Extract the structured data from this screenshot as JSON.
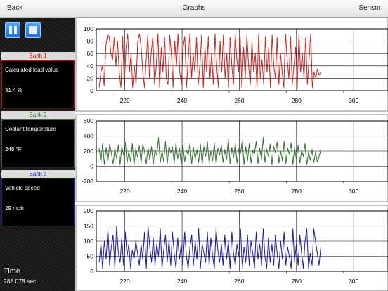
{
  "nav": {
    "back_label": "Back",
    "title": "Graphs",
    "sensor_label": "Sensor"
  },
  "controls": {
    "pause_icon": "pause-icon",
    "stop_icon": "stop-icon",
    "accent": "#2a86f6"
  },
  "banks": [
    {
      "header": "Bank 1",
      "sensor": "Calculated load value",
      "value": "31.4 %",
      "color": "#cc0000"
    },
    {
      "header": "Bank 2",
      "sensor": "Coolant temperature",
      "value": "248 °F",
      "color": "#3a6e3a"
    },
    {
      "header": "Bank 3",
      "sensor": "Vehicle speed",
      "value": "29 mph",
      "color": "#1a1aaa"
    }
  ],
  "time": {
    "label": "Time",
    "value": "288.078 sec"
  },
  "chart_data": [
    {
      "type": "line",
      "xlim": [
        210,
        312
      ],
      "ylim": [
        0,
        100
      ],
      "x_ticks": [
        220,
        240,
        260,
        280,
        300
      ],
      "y_ticks": [
        0,
        20,
        40,
        60,
        80,
        100
      ],
      "grid": true,
      "color": "#cc2222",
      "series": [
        {
          "values": [
            5,
            30,
            40,
            8,
            72,
            90,
            88,
            60,
            50,
            86,
            40,
            80,
            30,
            5,
            88,
            10,
            70,
            92,
            30,
            60,
            5,
            40,
            10,
            80,
            92,
            70,
            30,
            5,
            50,
            90,
            20,
            60,
            88,
            10,
            40,
            92,
            5,
            70,
            30,
            86,
            20,
            10,
            90,
            60,
            5,
            80,
            40,
            92,
            30,
            10,
            70,
            88,
            5,
            50,
            92,
            20,
            60,
            30,
            86,
            10,
            40,
            90,
            5,
            70,
            30,
            88,
            20,
            60,
            10,
            92,
            40,
            5,
            80,
            30,
            90,
            20,
            60,
            5,
            86,
            40,
            10,
            92,
            50,
            30,
            88,
            5,
            70,
            20,
            90,
            40,
            10,
            80,
            30,
            60,
            5,
            92,
            20,
            50,
            10,
            88,
            30,
            70,
            5,
            90,
            40,
            20,
            86,
            10,
            60,
            30,
            5,
            92,
            50,
            20,
            88,
            10,
            40,
            70,
            5,
            90,
            30,
            60,
            20,
            86,
            10,
            50,
            92,
            5,
            30,
            20,
            35,
            25,
            30
          ]
        }
      ]
    },
    {
      "type": "line",
      "xlim": [
        210,
        312
      ],
      "ylim": [
        -200,
        600
      ],
      "x_ticks": [
        220,
        240,
        260,
        280,
        300
      ],
      "y_ticks": [
        -200,
        0,
        200,
        400,
        600
      ],
      "grid": true,
      "color": "#3a6e3a",
      "series": [
        {
          "values": [
            240,
            50,
            300,
            20,
            250,
            60,
            290,
            180,
            30,
            230,
            100,
            280,
            20,
            260,
            150,
            320,
            40,
            200,
            60,
            300,
            10,
            240,
            120,
            270,
            40,
            290,
            200,
            30,
            250,
            80,
            260,
            20,
            230,
            140,
            380,
            50,
            200,
            60,
            330,
            30,
            270,
            180,
            260,
            40,
            300,
            100,
            240,
            20,
            280,
            60,
            210,
            150,
            300,
            30,
            250,
            90,
            220,
            50,
            290,
            20,
            260,
            130,
            330,
            40,
            200,
            70,
            310,
            30,
            240,
            150,
            280,
            50,
            220,
            90,
            360,
            30,
            250,
            110,
            300,
            40,
            230,
            170,
            350,
            20,
            260,
            70,
            300,
            40,
            210,
            160,
            330,
            30,
            240,
            90,
            380,
            50,
            220,
            130,
            290,
            20,
            260,
            180,
            320,
            40,
            200,
            70,
            330,
            30,
            240,
            160,
            310,
            20,
            250,
            90,
            280,
            40,
            210,
            130,
            300,
            20,
            190,
            80,
            220,
            50,
            190,
            60,
            120,
            220
          ]
        }
      ]
    },
    {
      "type": "line",
      "xlim": [
        210,
        312
      ],
      "ylim": [
        0,
        200
      ],
      "x_ticks": [
        220,
        240,
        260,
        280,
        300
      ],
      "y_ticks": [
        0,
        50,
        100,
        150,
        200
      ],
      "grid": true,
      "color": "#1a1aaa",
      "series": [
        {
          "values": [
            30,
            90,
            10,
            100,
            40,
            140,
            20,
            80,
            120,
            10,
            150,
            60,
            30,
            110,
            20,
            130,
            50,
            90,
            10,
            70,
            40,
            100,
            60,
            20,
            90,
            40,
            130,
            10,
            150,
            80,
            30,
            110,
            20,
            90,
            50,
            140,
            10,
            70,
            120,
            30,
            100,
            20,
            130,
            60,
            10,
            110,
            40,
            90,
            20,
            130,
            50,
            10,
            80,
            120,
            20,
            100,
            40,
            140,
            10,
            90,
            60,
            30,
            130,
            20,
            110,
            50,
            10,
            140,
            70,
            30,
            90,
            20,
            120,
            40,
            100,
            10,
            130,
            60,
            20,
            90,
            50,
            140,
            10,
            80,
            30,
            120,
            20,
            100,
            60,
            10,
            130,
            40,
            90,
            20,
            140,
            50,
            10,
            110,
            30,
            90,
            20,
            120,
            60,
            10,
            100,
            40,
            130,
            20,
            80,
            50,
            10,
            140,
            30,
            90,
            20,
            120,
            60,
            10,
            100,
            140,
            10,
            60,
            20,
            140,
            100,
            60,
            20,
            80
          ]
        }
      ]
    }
  ]
}
